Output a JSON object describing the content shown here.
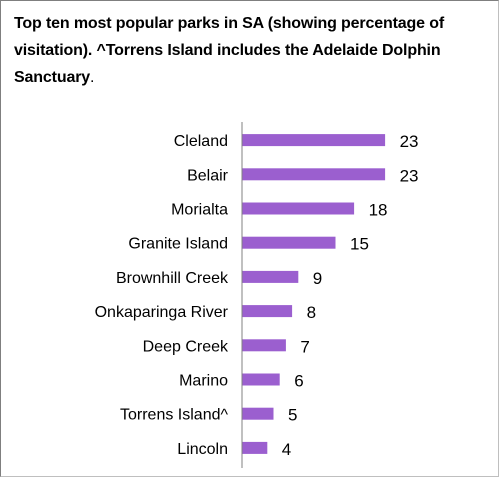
{
  "chart_data": {
    "type": "bar",
    "orientation": "horizontal",
    "title": "Top ten most popular parks in SA (showing percentage of visitation). ^Torrens Island includes the Adelaide Dolphin Sanctuary",
    "title_tail": ".",
    "categories": [
      "Cleland",
      "Belair",
      "Morialta",
      "Granite Island",
      "Brownhill Creek",
      "Onkaparinga River",
      "Deep Creek",
      "Marino",
      "Torrens Island^",
      "Lincoln"
    ],
    "values": [
      23,
      23,
      18,
      15,
      9,
      8,
      7,
      6,
      5,
      4
    ],
    "data_labels": [
      "23",
      "23",
      "18",
      "15",
      "9",
      "8",
      "7",
      "6",
      "5",
      "4"
    ],
    "xlim": [
      0,
      25
    ],
    "grid": false,
    "legend": "none",
    "bar_color": "#9b5fcf",
    "axis_color": "#808080"
  }
}
